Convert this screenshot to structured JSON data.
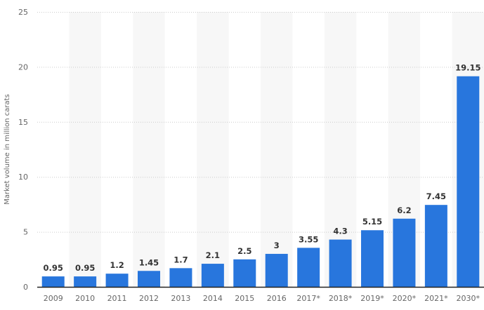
{
  "chart_data": {
    "type": "bar",
    "title": "",
    "xlabel": "",
    "ylabel": "Market volume in million carats",
    "categories": [
      "2009",
      "2010",
      "2011",
      "2012",
      "2013",
      "2014",
      "2015",
      "2016",
      "2017*",
      "2018*",
      "2019*",
      "2020*",
      "2021*",
      "2030*"
    ],
    "values": [
      0.95,
      0.95,
      1.2,
      1.45,
      1.7,
      2.1,
      2.5,
      3,
      3.55,
      4.3,
      5.15,
      6.2,
      7.45,
      19.15
    ],
    "value_labels": [
      "0.95",
      "0.95",
      "1.2",
      "1.45",
      "1.7",
      "2.1",
      "2.5",
      "3",
      "3.55",
      "4.3",
      "5.15",
      "6.2",
      "7.45",
      "19.15"
    ],
    "ylim": [
      0,
      25
    ],
    "yticks": [
      0,
      5,
      10,
      15,
      20,
      25
    ],
    "grid": true,
    "bar_color": "#2876dd",
    "band_color": "#f7f7f7"
  }
}
